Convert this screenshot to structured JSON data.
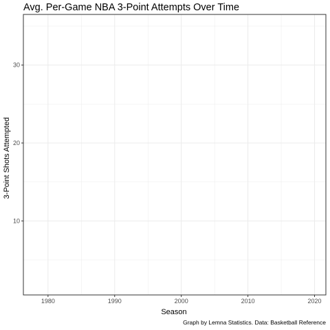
{
  "chart_data": {
    "type": "line",
    "title": "Avg. Per-Game NBA 3-Point Attempts Over Time",
    "xlabel": "Season",
    "ylabel": "3-Point Shots Attempted",
    "caption": "Graph by Lemna Statistics. Data: Basketball Reference",
    "x_ticks": [
      1980,
      1990,
      2000,
      2010,
      2020
    ],
    "y_ticks": [
      10,
      20,
      30
    ],
    "x_minor": [
      1985,
      1995,
      2005,
      2015
    ],
    "y_minor": [
      5,
      15,
      25,
      35
    ],
    "xlim": [
      1976.3,
      2021.7
    ],
    "ylim": [
      0.5,
      36.5
    ],
    "series": [],
    "grid": true,
    "theme": "bw",
    "colors": {
      "grid": "#ebebeb",
      "border": "#333333",
      "ticks": "#4d4d4d"
    }
  }
}
